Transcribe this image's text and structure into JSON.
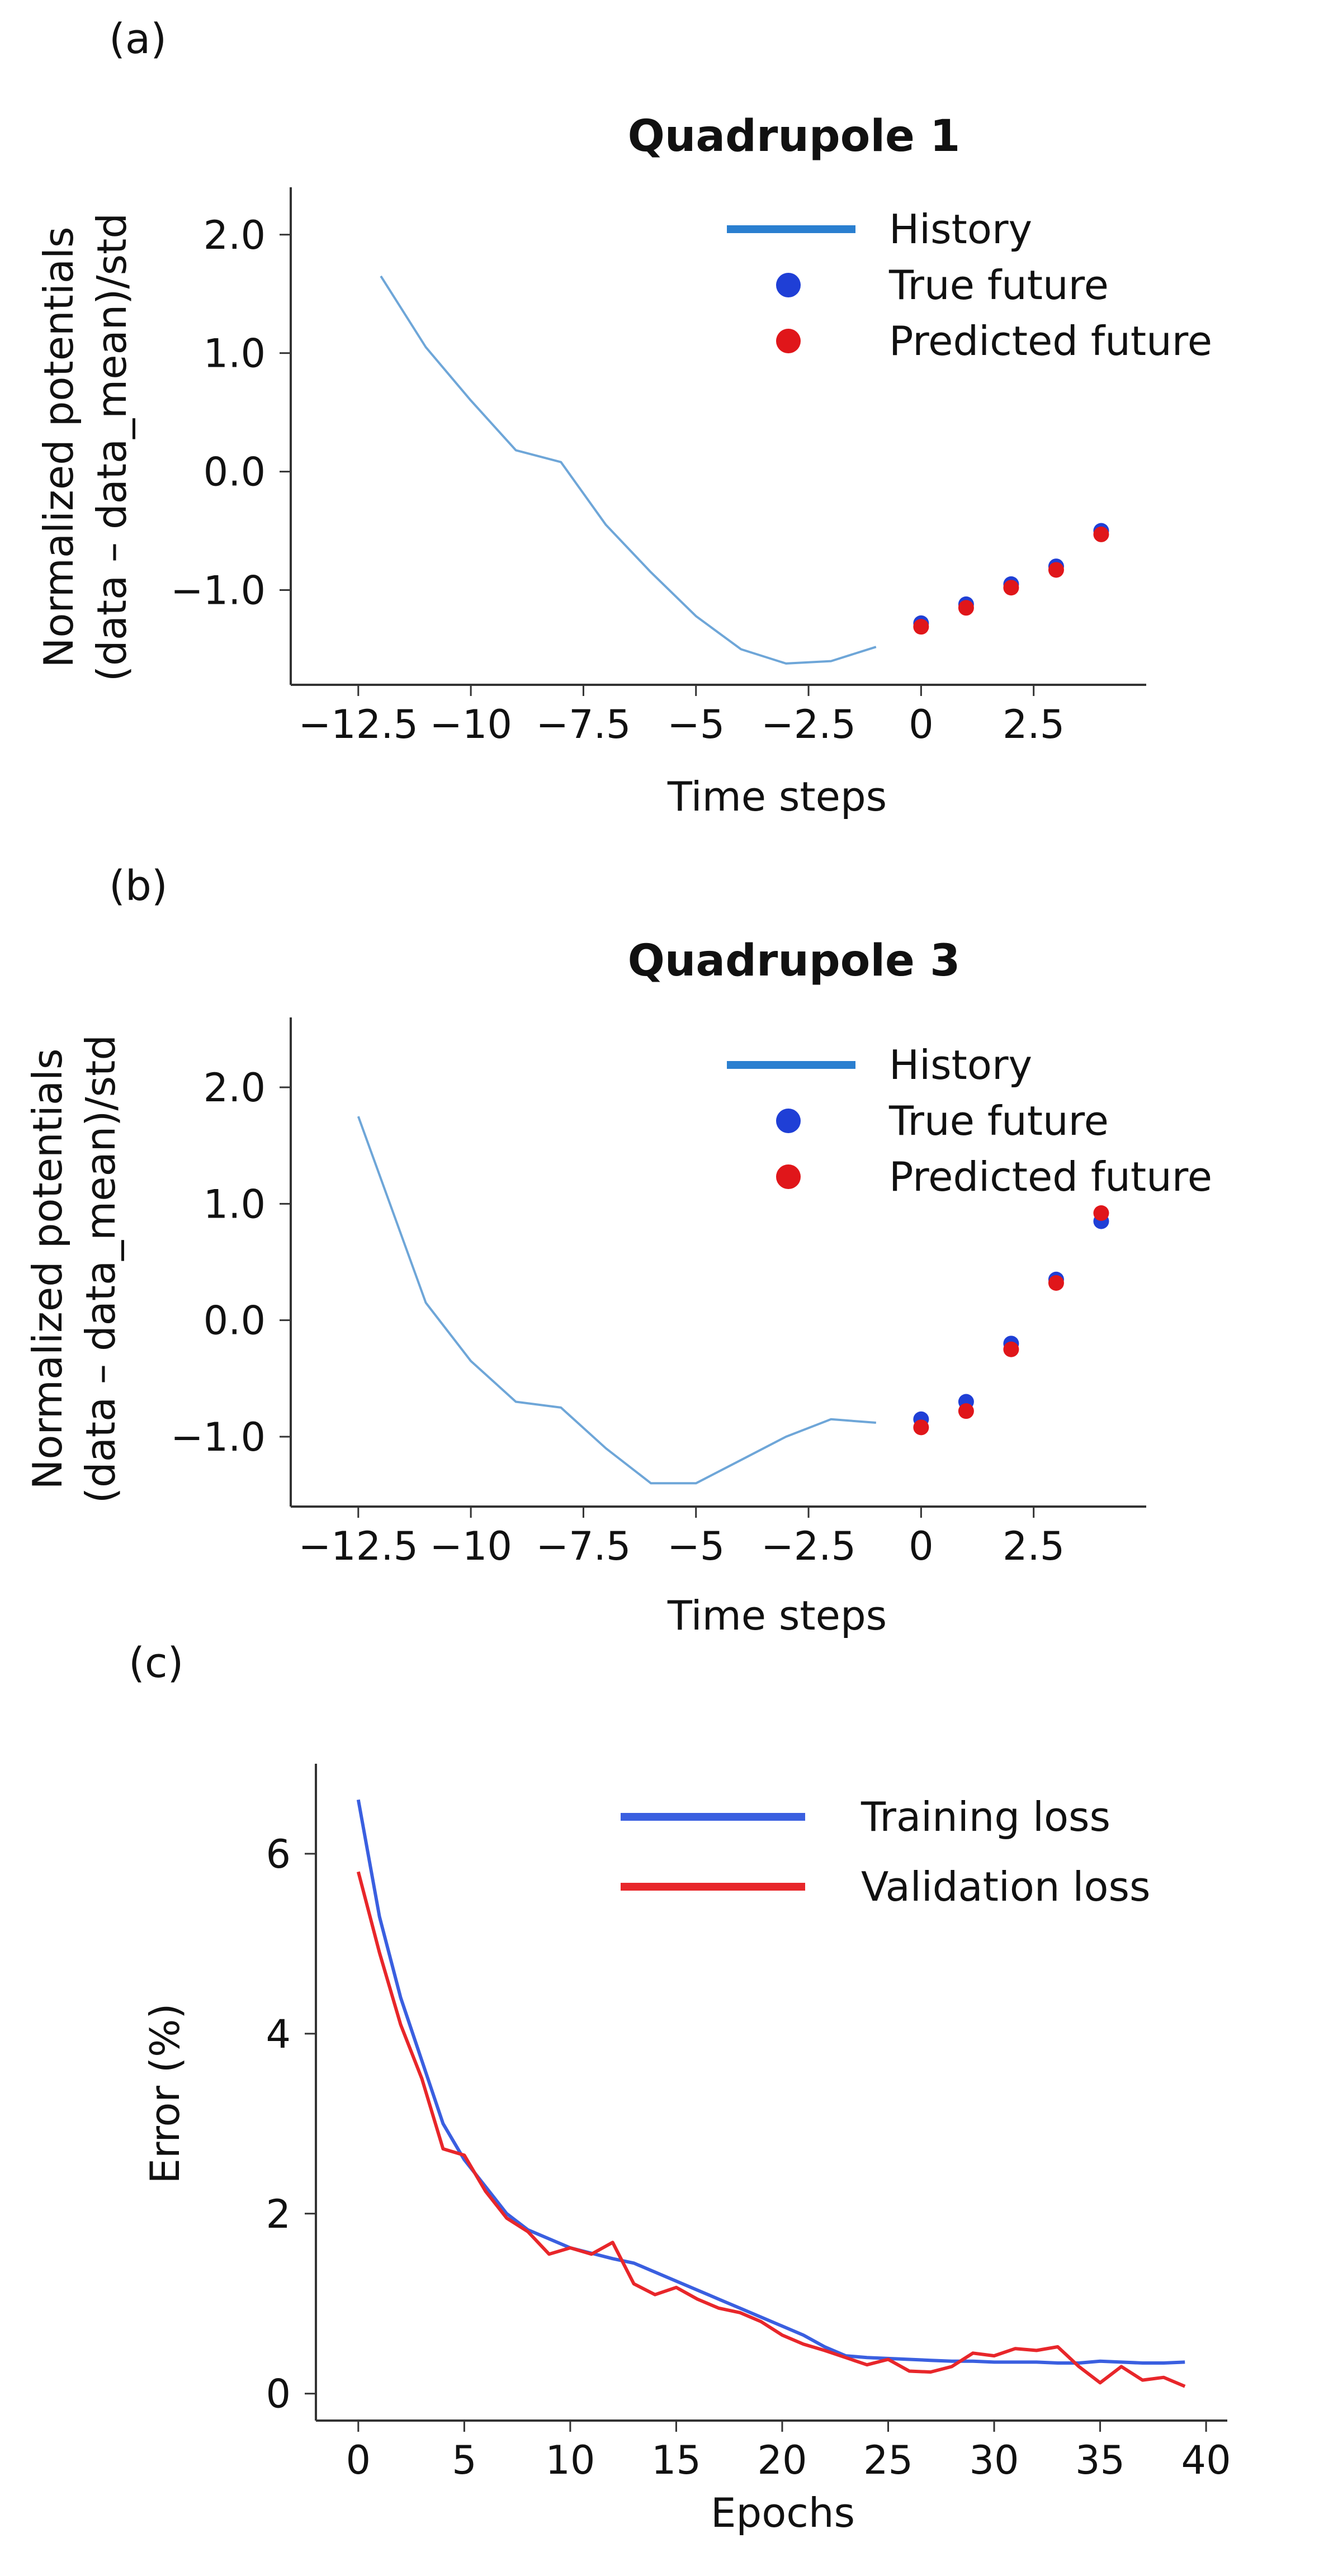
{
  "panel_labels": [
    "(a)",
    "(b)",
    "(c)"
  ],
  "chart_data": [
    {
      "type": "line",
      "title": "Quadrupole 1",
      "xlabel": "Time steps",
      "ylabel": "Normalized potentials\n(data – data_mean)/std",
      "xlim": [
        -14,
        5
      ],
      "ylim": [
        -1.8,
        2.4
      ],
      "xticks": [
        -12.5,
        -10,
        -7.5,
        -5,
        -2.5,
        0,
        2.5
      ],
      "xtick_labels": [
        "−12.5",
        "−10",
        "−7.5",
        "−5",
        "−2.5",
        "0",
        "2.5"
      ],
      "yticks": [
        2.0,
        1.0,
        0.0,
        -1.0
      ],
      "ytick_labels": [
        "2.0",
        "1.0",
        "0.0",
        "−1.0"
      ],
      "grid": false,
      "legend_position": "top-right",
      "series": [
        {
          "name": "History",
          "kind": "line",
          "color": "#6ea6d8",
          "x": [
            -12,
            -11,
            -10,
            -9,
            -8,
            -7,
            -6,
            -5,
            -4,
            -3,
            -2,
            -1
          ],
          "y": [
            1.65,
            1.05,
            0.6,
            0.18,
            0.08,
            -0.45,
            -0.85,
            -1.22,
            -1.5,
            -1.62,
            -1.6,
            -1.48
          ]
        },
        {
          "name": "True future",
          "kind": "points",
          "color": "#1f3fd6",
          "x": [
            0,
            1,
            2,
            3,
            4
          ],
          "y": [
            -1.28,
            -1.12,
            -0.95,
            -0.8,
            -0.5
          ]
        },
        {
          "name": "Predicted future",
          "kind": "points",
          "color": "#e0161a",
          "x": [
            0,
            1,
            2,
            3,
            4
          ],
          "y": [
            -1.31,
            -1.15,
            -0.98,
            -0.83,
            -0.53
          ]
        }
      ]
    },
    {
      "type": "line",
      "title": "Quadrupole 3",
      "xlabel": "Time steps",
      "ylabel": "Normalized potentials\n(data – data_mean)/std",
      "xlim": [
        -14,
        5
      ],
      "ylim": [
        -1.6,
        2.6
      ],
      "xticks": [
        -12.5,
        -10,
        -7.5,
        -5,
        -2.5,
        0,
        2.5
      ],
      "xtick_labels": [
        "−12.5",
        "−10",
        "−7.5",
        "−5",
        "−2.5",
        "0",
        "2.5"
      ],
      "yticks": [
        2.0,
        1.0,
        0.0,
        -1.0
      ],
      "ytick_labels": [
        "2.0",
        "1.0",
        "0.0",
        "−1.0"
      ],
      "grid": false,
      "legend_position": "top-right",
      "series": [
        {
          "name": "History",
          "kind": "line",
          "color": "#6ea6d8",
          "x": [
            -12.5,
            -11,
            -10,
            -9,
            -8,
            -7,
            -6,
            -5,
            -4,
            -3,
            -2,
            -1
          ],
          "y": [
            1.75,
            0.15,
            -0.35,
            -0.7,
            -0.75,
            -1.1,
            -1.4,
            -1.4,
            -1.2,
            -1.0,
            -0.85,
            -0.88
          ]
        },
        {
          "name": "True future",
          "kind": "points",
          "color": "#1f3fd6",
          "x": [
            0,
            1,
            2,
            3,
            4
          ],
          "y": [
            -0.85,
            -0.7,
            -0.2,
            0.35,
            0.85
          ]
        },
        {
          "name": "Predicted future",
          "kind": "points",
          "color": "#e0161a",
          "x": [
            0,
            1,
            2,
            3,
            4
          ],
          "y": [
            -0.92,
            -0.78,
            -0.25,
            0.32,
            0.92
          ]
        }
      ]
    },
    {
      "type": "line",
      "xlabel": "Epochs",
      "ylabel": "Error (%)",
      "xlim": [
        -2,
        41
      ],
      "ylim": [
        -0.3,
        7.0
      ],
      "xticks": [
        0,
        5,
        10,
        15,
        20,
        25,
        30,
        35,
        40
      ],
      "xtick_labels": [
        "0",
        "5",
        "10",
        "15",
        "20",
        "25",
        "30",
        "35",
        "40"
      ],
      "yticks": [
        0,
        2,
        4,
        6
      ],
      "ytick_labels": [
        "0",
        "2",
        "4",
        "6"
      ],
      "grid": false,
      "legend_position": "top-right",
      "series": [
        {
          "name": "Training loss",
          "color": "#3a5fe0",
          "x": [
            0,
            1,
            2,
            3,
            4,
            5,
            6,
            7,
            8,
            9,
            10,
            11,
            12,
            13,
            14,
            15,
            16,
            17,
            18,
            19,
            20,
            21,
            22,
            23,
            24,
            25,
            26,
            27,
            28,
            29,
            30,
            31,
            32,
            33,
            34,
            35,
            36,
            37,
            38,
            39
          ],
          "y": [
            6.6,
            5.3,
            4.4,
            3.7,
            3.0,
            2.6,
            2.3,
            2.0,
            1.82,
            1.72,
            1.62,
            1.56,
            1.5,
            1.45,
            1.35,
            1.25,
            1.15,
            1.05,
            0.95,
            0.85,
            0.75,
            0.65,
            0.52,
            0.42,
            0.4,
            0.39,
            0.38,
            0.37,
            0.36,
            0.36,
            0.35,
            0.35,
            0.35,
            0.34,
            0.34,
            0.36,
            0.35,
            0.34,
            0.34,
            0.35
          ]
        },
        {
          "name": "Validation loss",
          "color": "#e8262a",
          "x": [
            0,
            1,
            2,
            3,
            4,
            5,
            6,
            7,
            8,
            9,
            10,
            11,
            12,
            13,
            14,
            15,
            16,
            17,
            18,
            19,
            20,
            21,
            22,
            23,
            24,
            25,
            26,
            27,
            28,
            29,
            30,
            31,
            32,
            33,
            34,
            35,
            36,
            37,
            38,
            39
          ],
          "y": [
            5.8,
            4.9,
            4.1,
            3.5,
            2.72,
            2.65,
            2.25,
            1.95,
            1.8,
            1.55,
            1.62,
            1.55,
            1.68,
            1.22,
            1.1,
            1.18,
            1.05,
            0.95,
            0.9,
            0.8,
            0.65,
            0.55,
            0.48,
            0.4,
            0.32,
            0.38,
            0.25,
            0.24,
            0.3,
            0.45,
            0.42,
            0.5,
            0.48,
            0.52,
            0.3,
            0.12,
            0.3,
            0.15,
            0.18,
            0.08
          ]
        }
      ]
    }
  ]
}
